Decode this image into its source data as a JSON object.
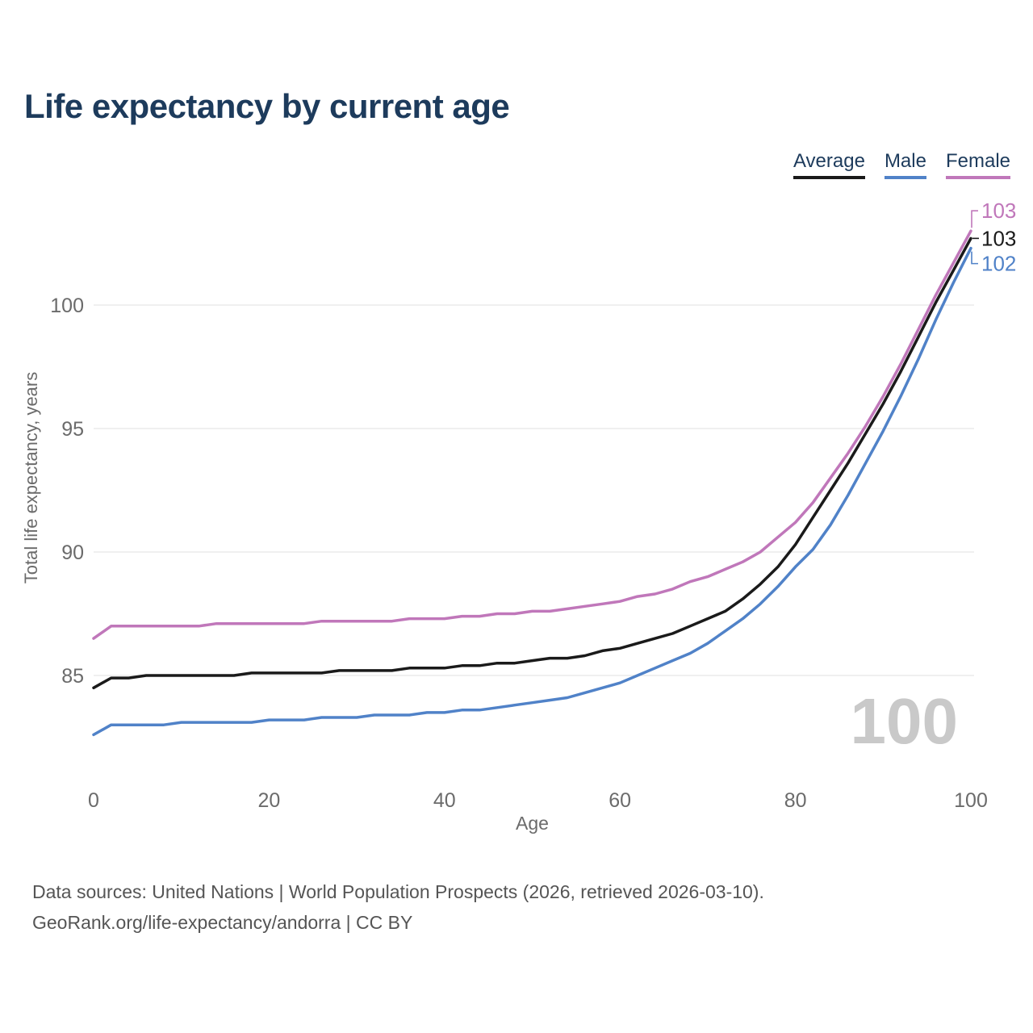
{
  "page": {
    "title": "Life expectancy by current age",
    "footer_line1": "Data sources: United Nations | World Population Prospects (2026, retrieved 2026-03-10).",
    "footer_line2": "GeoRank.org/life-expectancy/andorra | CC BY"
  },
  "legend": {
    "position": "top-right",
    "items": [
      {
        "label": "Average",
        "color": "#1a1a1a"
      },
      {
        "label": "Male",
        "color": "#5082c8"
      },
      {
        "label": "Female",
        "color": "#c077ba"
      }
    ]
  },
  "watermark": "100",
  "colors": {
    "title": "#1d3b5c",
    "legend_text": "#1d3b5c",
    "axis_text": "#6b6b6b",
    "grid": "#e8e8e8",
    "footer": "#555555",
    "watermark": "#c9c9c9",
    "background": "#ffffff"
  },
  "chart_data": {
    "type": "line",
    "title": "Life expectancy by current age",
    "xlabel": "Age",
    "ylabel": "Total life expectancy, years",
    "xlim": [
      0,
      100
    ],
    "ylim": [
      82,
      103.5
    ],
    "x_ticks": [
      0,
      20,
      40,
      60,
      80,
      100
    ],
    "y_ticks": [
      85,
      90,
      95,
      100
    ],
    "grid": "horizontal",
    "legend_position": "top-right",
    "series": [
      {
        "name": "Average",
        "color": "#1a1a1a",
        "end_label": "103",
        "x": [
          0,
          2,
          4,
          6,
          8,
          10,
          12,
          14,
          16,
          18,
          20,
          22,
          24,
          26,
          28,
          30,
          32,
          34,
          36,
          38,
          40,
          42,
          44,
          46,
          48,
          50,
          52,
          54,
          56,
          58,
          60,
          62,
          64,
          66,
          68,
          70,
          72,
          74,
          76,
          78,
          80,
          82,
          84,
          86,
          88,
          90,
          92,
          94,
          96,
          98,
          100
        ],
        "values": [
          84.5,
          84.9,
          84.9,
          85.0,
          85.0,
          85.0,
          85.0,
          85.0,
          85.0,
          85.1,
          85.1,
          85.1,
          85.1,
          85.1,
          85.2,
          85.2,
          85.2,
          85.2,
          85.3,
          85.3,
          85.3,
          85.4,
          85.4,
          85.5,
          85.5,
          85.6,
          85.7,
          85.7,
          85.8,
          86.0,
          86.1,
          86.3,
          86.5,
          86.7,
          87.0,
          87.3,
          87.6,
          88.1,
          88.7,
          89.4,
          90.3,
          91.4,
          92.5,
          93.6,
          94.8,
          96.0,
          97.3,
          98.7,
          100.1,
          101.4,
          102.7
        ]
      },
      {
        "name": "Male",
        "color": "#5082c8",
        "end_label": "102",
        "x": [
          0,
          2,
          4,
          6,
          8,
          10,
          12,
          14,
          16,
          18,
          20,
          22,
          24,
          26,
          28,
          30,
          32,
          34,
          36,
          38,
          40,
          42,
          44,
          46,
          48,
          50,
          52,
          54,
          56,
          58,
          60,
          62,
          64,
          66,
          68,
          70,
          72,
          74,
          76,
          78,
          80,
          82,
          84,
          86,
          88,
          90,
          92,
          94,
          96,
          98,
          100
        ],
        "values": [
          82.6,
          83.0,
          83.0,
          83.0,
          83.0,
          83.1,
          83.1,
          83.1,
          83.1,
          83.1,
          83.2,
          83.2,
          83.2,
          83.3,
          83.3,
          83.3,
          83.4,
          83.4,
          83.4,
          83.5,
          83.5,
          83.6,
          83.6,
          83.7,
          83.8,
          83.9,
          84.0,
          84.1,
          84.3,
          84.5,
          84.7,
          85.0,
          85.3,
          85.6,
          85.9,
          86.3,
          86.8,
          87.3,
          87.9,
          88.6,
          89.4,
          90.1,
          91.1,
          92.3,
          93.6,
          94.9,
          96.3,
          97.8,
          99.4,
          100.9,
          102.3
        ]
      },
      {
        "name": "Female",
        "color": "#c077ba",
        "end_label": "103",
        "x": [
          0,
          2,
          4,
          6,
          8,
          10,
          12,
          14,
          16,
          18,
          20,
          22,
          24,
          26,
          28,
          30,
          32,
          34,
          36,
          38,
          40,
          42,
          44,
          46,
          48,
          50,
          52,
          54,
          56,
          58,
          60,
          62,
          64,
          66,
          68,
          70,
          72,
          74,
          76,
          78,
          80,
          82,
          84,
          86,
          88,
          90,
          92,
          94,
          96,
          98,
          100
        ],
        "values": [
          86.5,
          87.0,
          87.0,
          87.0,
          87.0,
          87.0,
          87.0,
          87.1,
          87.1,
          87.1,
          87.1,
          87.1,
          87.1,
          87.2,
          87.2,
          87.2,
          87.2,
          87.2,
          87.3,
          87.3,
          87.3,
          87.4,
          87.4,
          87.5,
          87.5,
          87.6,
          87.6,
          87.7,
          87.8,
          87.9,
          88.0,
          88.2,
          88.3,
          88.5,
          88.8,
          89.0,
          89.3,
          89.6,
          90.0,
          90.6,
          91.2,
          92.0,
          93.0,
          94.0,
          95.1,
          96.3,
          97.6,
          99.0,
          100.4,
          101.7,
          103.0
        ]
      }
    ]
  }
}
